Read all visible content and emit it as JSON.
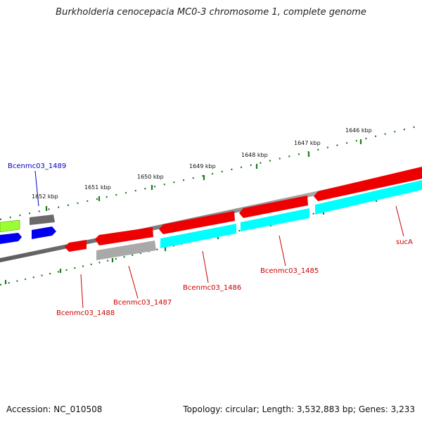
{
  "title": "Burkholderia cenocepacia MC0-3 chromosome 1, complete genome",
  "footer": {
    "accession": "Accession: NC_010508",
    "summary": "Topology: circular; Length: 3,532,883 bp; Genes: 3,233"
  },
  "ticks": [
    "1646 kbp",
    "1647 kbp",
    "1648 kbp",
    "1649 kbp",
    "1650 kbp",
    "1651 kbp",
    "1652 kbp"
  ],
  "gene_labels": {
    "bcenmc03_1489": "Bcenmc03_1489",
    "bcenmc03_1488": "Bcenmc03_1488",
    "bcenmc03_1487": "Bcenmc03_1487",
    "bcenmc03_1486": "Bcenmc03_1486",
    "bcenmc03_1485": "Bcenmc03_1485",
    "suca": "sucA"
  },
  "colors": {
    "red": "#ee0000",
    "cyan": "#00ffff",
    "gray": "#a9a9a9",
    "darkgray": "#6a6a6a",
    "blue": "#0000ee",
    "green": "#99ff33",
    "tick": "#1f7a1f",
    "label_red": "#cc0000",
    "label_blue": "#0000cc"
  }
}
